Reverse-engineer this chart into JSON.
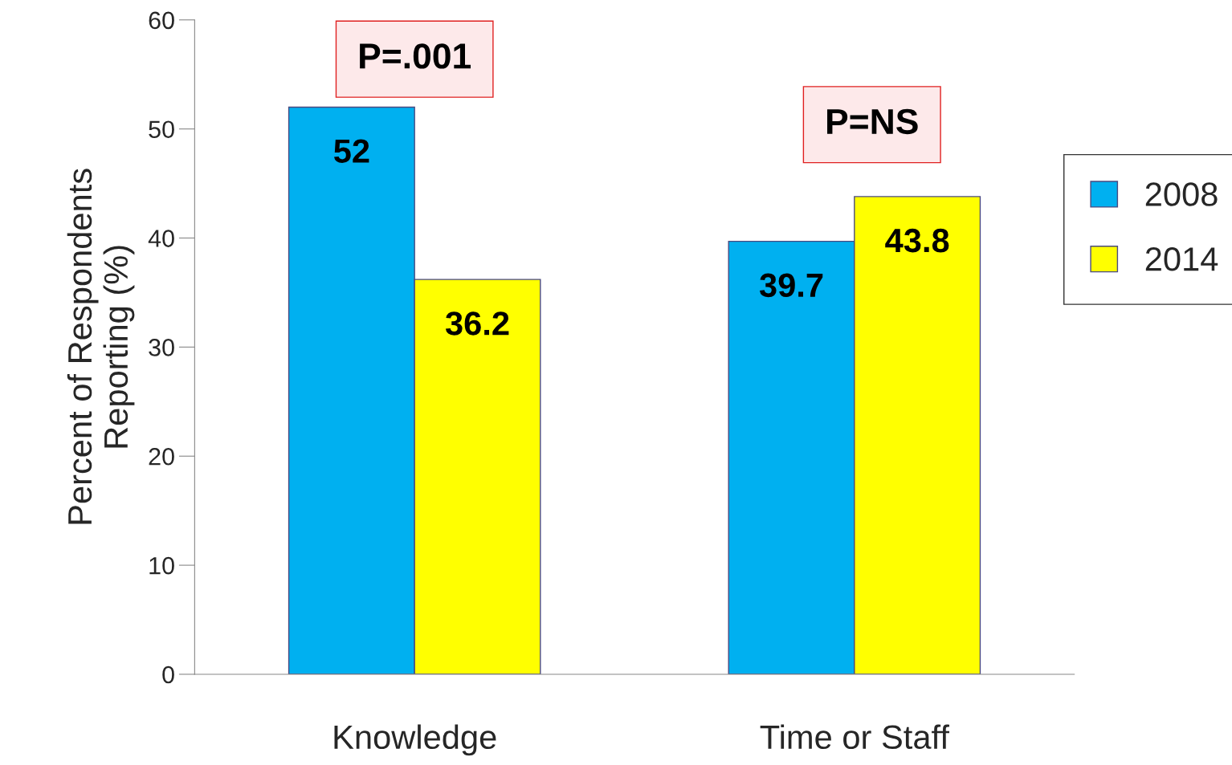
{
  "chart_data": {
    "type": "bar",
    "ylabel": "Percent of Respondents\nReporting (%)",
    "categories": [
      "Knowledge",
      "Time or Staff"
    ],
    "series": [
      {
        "name": "2008",
        "color": "#00b0f0",
        "values": [
          52,
          39.7
        ]
      },
      {
        "name": "2014",
        "color": "#ffff00",
        "values": [
          36.2,
          43.8
        ]
      }
    ],
    "ylim": [
      0,
      60
    ],
    "yticks": [
      0,
      10,
      20,
      30,
      40,
      50,
      60
    ],
    "data_labels": true,
    "grid": false,
    "legend": "right",
    "annotations": [
      "P=.001",
      "P=NS"
    ]
  }
}
